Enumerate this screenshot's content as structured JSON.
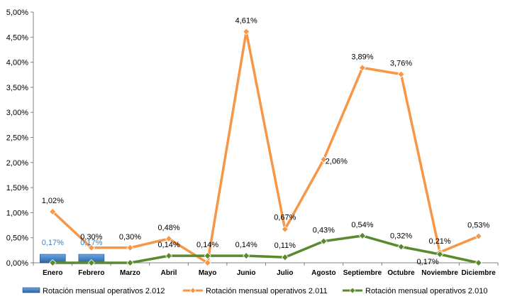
{
  "chart_data": {
    "type": "bar+line",
    "categories": [
      "Enero",
      "Febrero",
      "Marzo",
      "Abril",
      "Mayo",
      "Junio",
      "Julio",
      "Agosto",
      "Septiembre",
      "Octubre",
      "Noviembre",
      "Diciembre"
    ],
    "ylim": [
      0,
      5.0
    ],
    "yticks": [
      "0,00%",
      "0,50%",
      "1,00%",
      "1,50%",
      "2,00%",
      "2,50%",
      "3,00%",
      "3,50%",
      "4,00%",
      "4,50%",
      "5,00%"
    ],
    "grid": false,
    "legend_position": "bottom",
    "series": [
      {
        "name": "Rotación mensual operativos 2.012",
        "kind": "bar",
        "color": "#3c7fc3",
        "values": [
          0.17,
          0.17,
          null,
          null,
          null,
          null,
          null,
          null,
          null,
          null,
          null,
          null
        ],
        "labels": [
          "0,17%",
          "0,17%",
          "",
          "",
          "",
          "",
          "",
          "",
          "",
          "",
          "",
          ""
        ]
      },
      {
        "name": "Rotación mensual operativos 2.011",
        "kind": "line",
        "color": "#f79646",
        "values": [
          1.02,
          0.3,
          0.3,
          0.48,
          0.0,
          4.61,
          0.67,
          2.06,
          3.89,
          3.76,
          0.21,
          0.53
        ],
        "labels": [
          "1,02%",
          "0,30%",
          "0,30%",
          "0,48%",
          "",
          "4,61%",
          "0,67%",
          "2,06%",
          "3,89%",
          "3,76%",
          "0,21%",
          "0,53%"
        ]
      },
      {
        "name": "Rotación mensual operativos 2.010",
        "kind": "line",
        "color": "#5a8a2e",
        "values": [
          0.0,
          0.0,
          0.0,
          0.14,
          0.14,
          0.14,
          0.11,
          0.43,
          0.54,
          0.32,
          0.17,
          0.0
        ],
        "labels": [
          "",
          "",
          "",
          "0,14%",
          "0,14%",
          "0,14%",
          "0,11%",
          "0,43%",
          "0,54%",
          "0,32%",
          "0,17%",
          ""
        ]
      }
    ]
  }
}
